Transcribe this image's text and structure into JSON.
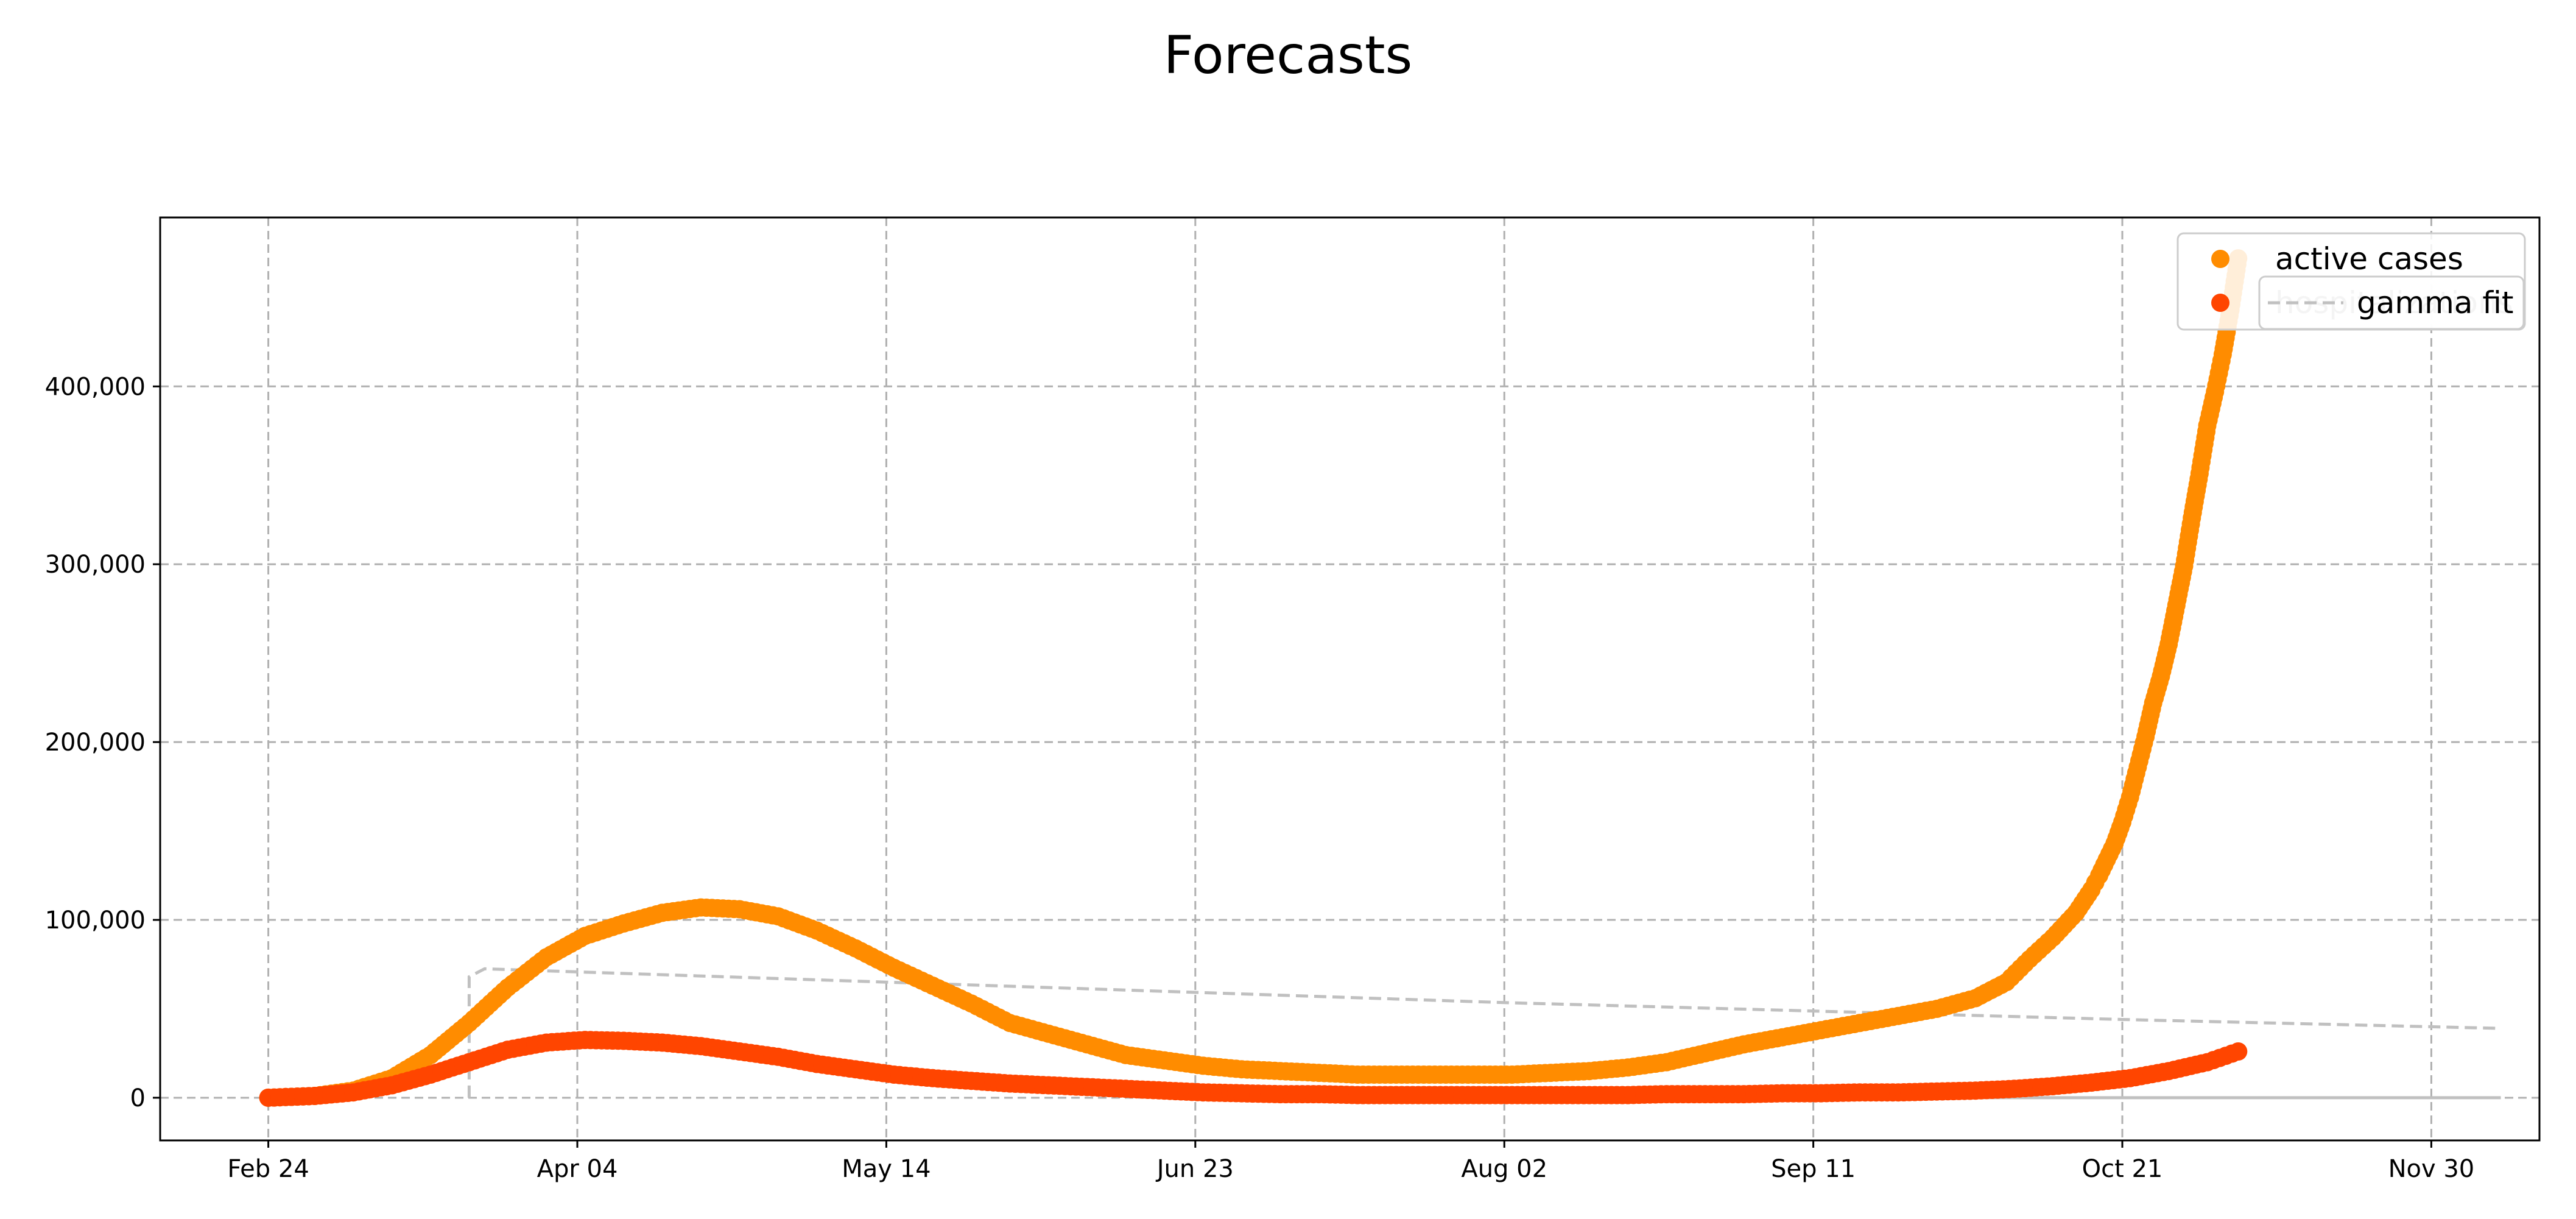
{
  "chart_data": {
    "type": "scatter",
    "title": "Forecasts",
    "xlabel": "",
    "ylabel": "",
    "x_axis": {
      "type": "date",
      "range": [
        "2020-02-10",
        "2020-12-14"
      ],
      "ticks": [
        "2020-02-24",
        "2020-04-04",
        "2020-05-14",
        "2020-06-23",
        "2020-08-02",
        "2020-09-11",
        "2020-10-21",
        "2020-11-30"
      ],
      "tick_labels": [
        "Feb 24",
        "Apr 04",
        "May 14",
        "Jun 23",
        "Aug 02",
        "Sep 11",
        "Oct 21",
        "Nov 30"
      ]
    },
    "y_axis": {
      "range": [
        -24000,
        495000
      ],
      "ticks": [
        0,
        100000,
        200000,
        300000,
        400000
      ],
      "tick_labels": [
        "0",
        "100,000",
        "200,000",
        "300,000",
        "400,000"
      ]
    },
    "grid": true,
    "legend_position": "top-right",
    "series": [
      {
        "name": "active cases",
        "kind": "scatter",
        "color": "#ff8c00",
        "points": [
          [
            "2020-02-24",
            0
          ],
          [
            "2020-03-01",
            1000
          ],
          [
            "2020-03-06",
            4000
          ],
          [
            "2020-03-11",
            11000
          ],
          [
            "2020-03-16",
            24000
          ],
          [
            "2020-03-21",
            42000
          ],
          [
            "2020-03-26",
            62000
          ],
          [
            "2020-03-31",
            79000
          ],
          [
            "2020-04-05",
            91000
          ],
          [
            "2020-04-10",
            98000
          ],
          [
            "2020-04-15",
            104000
          ],
          [
            "2020-04-20",
            107000
          ],
          [
            "2020-04-25",
            106000
          ],
          [
            "2020-04-30",
            102000
          ],
          [
            "2020-05-05",
            94000
          ],
          [
            "2020-05-10",
            84000
          ],
          [
            "2020-05-15",
            73000
          ],
          [
            "2020-05-20",
            63000
          ],
          [
            "2020-05-25",
            53000
          ],
          [
            "2020-05-30",
            42000
          ],
          [
            "2020-06-04",
            36000
          ],
          [
            "2020-06-09",
            30000
          ],
          [
            "2020-06-14",
            24000
          ],
          [
            "2020-06-19",
            21000
          ],
          [
            "2020-06-24",
            18000
          ],
          [
            "2020-06-29",
            16000
          ],
          [
            "2020-07-04",
            15000
          ],
          [
            "2020-07-09",
            14000
          ],
          [
            "2020-07-14",
            13000
          ],
          [
            "2020-07-19",
            13000
          ],
          [
            "2020-07-24",
            13000
          ],
          [
            "2020-07-29",
            13000
          ],
          [
            "2020-08-03",
            13000
          ],
          [
            "2020-08-08",
            14000
          ],
          [
            "2020-08-13",
            15000
          ],
          [
            "2020-08-18",
            17000
          ],
          [
            "2020-08-23",
            20000
          ],
          [
            "2020-08-28",
            25000
          ],
          [
            "2020-09-02",
            30000
          ],
          [
            "2020-09-07",
            34000
          ],
          [
            "2020-09-12",
            38000
          ],
          [
            "2020-09-17",
            42000
          ],
          [
            "2020-09-22",
            46000
          ],
          [
            "2020-09-27",
            50000
          ],
          [
            "2020-10-02",
            56000
          ],
          [
            "2020-10-06",
            65000
          ],
          [
            "2020-10-09",
            78000
          ],
          [
            "2020-10-12",
            90000
          ],
          [
            "2020-10-15",
            104000
          ],
          [
            "2020-10-17",
            117000
          ],
          [
            "2020-10-18",
            125000
          ],
          [
            "2020-10-19",
            134000
          ],
          [
            "2020-10-20",
            143000
          ],
          [
            "2020-10-21",
            155000
          ],
          [
            "2020-10-22",
            169000
          ],
          [
            "2020-10-23",
            186000
          ],
          [
            "2020-10-24",
            203000
          ],
          [
            "2020-10-25",
            222000
          ],
          [
            "2020-10-26",
            237000
          ],
          [
            "2020-10-27",
            255000
          ],
          [
            "2020-10-28",
            277000
          ],
          [
            "2020-10-29",
            299000
          ],
          [
            "2020-10-30",
            326000
          ],
          [
            "2020-10-31",
            351000
          ],
          [
            "2020-11-01",
            378000
          ],
          [
            "2020-11-02",
            397000
          ],
          [
            "2020-11-03",
            418000
          ],
          [
            "2020-11-04",
            443000
          ],
          [
            "2020-11-05",
            472000
          ]
        ]
      },
      {
        "name": "hospitalizations",
        "kind": "scatter",
        "color": "#ff4500",
        "points": [
          [
            "2020-02-24",
            0
          ],
          [
            "2020-03-01",
            1000
          ],
          [
            "2020-03-06",
            3000
          ],
          [
            "2020-03-11",
            7000
          ],
          [
            "2020-03-16",
            13000
          ],
          [
            "2020-03-21",
            20000
          ],
          [
            "2020-03-26",
            27000
          ],
          [
            "2020-03-31",
            31000
          ],
          [
            "2020-04-05",
            32500
          ],
          [
            "2020-04-10",
            32000
          ],
          [
            "2020-04-15",
            31000
          ],
          [
            "2020-04-20",
            29000
          ],
          [
            "2020-04-25",
            26000
          ],
          [
            "2020-04-30",
            23000
          ],
          [
            "2020-05-05",
            19000
          ],
          [
            "2020-05-10",
            16000
          ],
          [
            "2020-05-15",
            13000
          ],
          [
            "2020-05-20",
            11000
          ],
          [
            "2020-05-25",
            9500
          ],
          [
            "2020-05-30",
            8000
          ],
          [
            "2020-06-04",
            7000
          ],
          [
            "2020-06-09",
            6000
          ],
          [
            "2020-06-14",
            5000
          ],
          [
            "2020-06-19",
            4000
          ],
          [
            "2020-06-24",
            3000
          ],
          [
            "2020-06-29",
            2500
          ],
          [
            "2020-07-04",
            2000
          ],
          [
            "2020-07-09",
            2000
          ],
          [
            "2020-07-14",
            1500
          ],
          [
            "2020-07-19",
            1500
          ],
          [
            "2020-07-24",
            1500
          ],
          [
            "2020-07-29",
            1500
          ],
          [
            "2020-08-03",
            1500
          ],
          [
            "2020-08-08",
            1500
          ],
          [
            "2020-08-13",
            1500
          ],
          [
            "2020-08-18",
            1500
          ],
          [
            "2020-08-23",
            2000
          ],
          [
            "2020-08-28",
            2000
          ],
          [
            "2020-09-02",
            2000
          ],
          [
            "2020-09-07",
            2500
          ],
          [
            "2020-09-12",
            2500
          ],
          [
            "2020-09-17",
            3000
          ],
          [
            "2020-09-22",
            3000
          ],
          [
            "2020-09-27",
            3500
          ],
          [
            "2020-10-02",
            4000
          ],
          [
            "2020-10-07",
            5000
          ],
          [
            "2020-10-12",
            6500
          ],
          [
            "2020-10-17",
            8500
          ],
          [
            "2020-10-22",
            11000
          ],
          [
            "2020-10-27",
            15000
          ],
          [
            "2020-11-01",
            20000
          ],
          [
            "2020-11-05",
            26000
          ]
        ]
      },
      {
        "name": "gamma fit",
        "kind": "line",
        "style": "dashed",
        "color": "#c0c0c0",
        "points": [
          [
            "2020-03-21",
            0
          ],
          [
            "2020-03-21",
            68000
          ],
          [
            "2020-03-23",
            72500
          ],
          [
            "2020-05-14",
            65000
          ],
          [
            "2020-08-02",
            53500
          ],
          [
            "2020-10-21",
            44000
          ],
          [
            "2020-12-09",
            39000
          ]
        ]
      },
      {
        "name": "",
        "kind": "line",
        "style": "solid",
        "color": "#c0c0c0",
        "points": [
          [
            "2020-09-27",
            0
          ],
          [
            "2020-12-09",
            0
          ]
        ]
      }
    ],
    "legends": [
      {
        "entries": [
          {
            "label": "active cases",
            "marker": "dot",
            "color": "#ff8c00"
          },
          {
            "label": "hospitalizations",
            "marker": "dot",
            "color": "#ff4500",
            "label_color": "#c8c8c8"
          }
        ]
      },
      {
        "entries": [
          {
            "label": "gamma fit",
            "marker": "dashed-line",
            "color": "#c0c0c0"
          }
        ]
      }
    ]
  }
}
